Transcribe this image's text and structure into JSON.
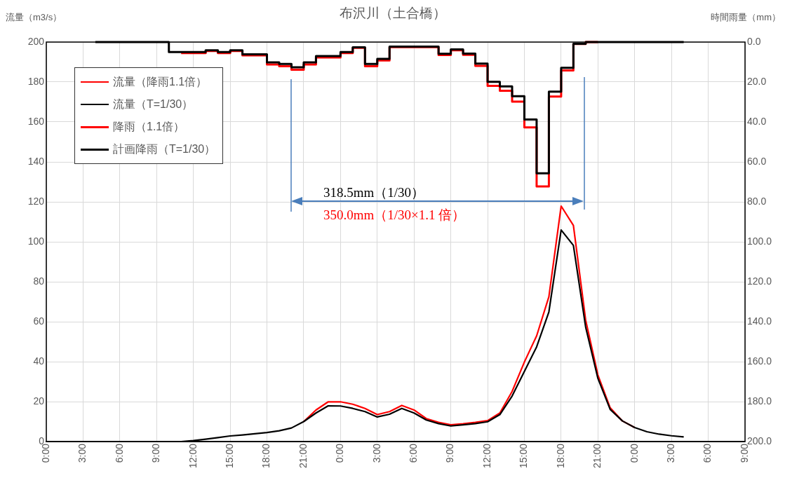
{
  "chart_data": {
    "type": "line",
    "title": "布沢川（土合橋）",
    "ylabel": "流量（m3/s）",
    "y2label": "時間雨量（mm）",
    "categories": [
      "0:00",
      null,
      null,
      "3:00",
      null,
      null,
      "6:00",
      null,
      null,
      "9:00",
      null,
      null,
      "12:00",
      null,
      null,
      "15:00",
      null,
      null,
      "18:00",
      null,
      null,
      "21:00",
      null,
      null,
      "0:00",
      null,
      null,
      "3:00",
      null,
      null,
      "6:00",
      null,
      null,
      "9:00",
      null,
      null,
      "12:00",
      null,
      null,
      "15:00",
      null,
      null,
      "18:00",
      null,
      null,
      "21:00",
      null,
      null,
      "0:00",
      null,
      null,
      "3:00",
      null,
      null,
      "6:00",
      null,
      null,
      "9:00"
    ],
    "ylim": [
      0,
      200
    ],
    "yticks": [
      0,
      20,
      40,
      60,
      80,
      100,
      120,
      140,
      160,
      180,
      200
    ],
    "y2lim": [
      200,
      0
    ],
    "y2ticks": [
      {
        "value": 0,
        "label": "0.0"
      },
      {
        "value": 20,
        "label": "20.0"
      },
      {
        "value": 40,
        "label": "40.0"
      },
      {
        "value": 60,
        "label": "60.0"
      },
      {
        "value": 80,
        "label": "80.0"
      },
      {
        "value": 100,
        "label": "100.0"
      },
      {
        "value": 120,
        "label": "120.0"
      },
      {
        "value": 140,
        "label": "140.0"
      },
      {
        "value": 160,
        "label": "160.0"
      },
      {
        "value": 180,
        "label": "180.0"
      },
      {
        "value": 200,
        "label": "200.0"
      }
    ],
    "grid": true,
    "legend": "top left",
    "annotations": [
      "318.5mm（1/30）",
      "350.0mm（1/30×1.1 倍）"
    ],
    "series": [
      {
        "name": "流量（降雨1.1倍）",
        "type": "line",
        "color": "#ff0000",
        "values": [
          null,
          null,
          null,
          null,
          null,
          null,
          null,
          null,
          null,
          null,
          null,
          null,
          null,
          null,
          null,
          null,
          null,
          null,
          null,
          null,
          null,
          10,
          15.8,
          19.9,
          19.9,
          18.7,
          16.6,
          13.5,
          15,
          18.1,
          15.8,
          11.5,
          9.6,
          8.4,
          8.9,
          9.6,
          10.5,
          14.3,
          25.1,
          39.8,
          52.9,
          72.5,
          117.9,
          108.2,
          60.8,
          33.3,
          16.9,
          10.3,
          7,
          null,
          null,
          null,
          null,
          null,
          null,
          null,
          null,
          null
        ]
      },
      {
        "name": "流量（T=1/30）",
        "type": "line",
        "color": "#000000",
        "values": [
          null,
          null,
          null,
          null,
          null,
          0,
          0,
          0,
          0,
          0,
          0,
          0,
          0.5,
          1.2,
          2,
          2.8,
          3.3,
          3.9,
          4.5,
          5.4,
          6.8,
          10,
          14.3,
          17.9,
          17.8,
          16.6,
          15,
          12.3,
          13.7,
          16.6,
          14.3,
          10.8,
          9,
          7.8,
          8.4,
          9,
          9.9,
          13.5,
          22.8,
          35.1,
          47.4,
          64.9,
          105.9,
          98.2,
          57.3,
          31.6,
          16.1,
          10.3,
          7,
          4.9,
          3.7,
          2.9,
          2.3,
          null,
          null,
          null,
          null,
          null
        ]
      },
      {
        "name": "降雨（1.1倍）",
        "type": "step",
        "axis": "y2",
        "color": "#ff0000",
        "values": [
          null,
          null,
          null,
          null,
          null,
          null,
          null,
          null,
          null,
          null,
          null,
          5.5,
          5.5,
          5.5,
          4.5,
          5.5,
          4.5,
          6.7,
          6.7,
          11.2,
          12.1,
          13.9,
          11.2,
          7.7,
          7.7,
          5.5,
          2.9,
          12.1,
          9.2,
          2.5,
          2.5,
          2.5,
          2.5,
          6.5,
          4.1,
          6.4,
          11.9,
          21.9,
          24.4,
          29.8,
          42.7,
          72.3,
          27.3,
          14.2,
          1,
          0,
          null,
          null,
          null,
          null,
          null,
          null,
          null,
          null,
          null,
          null,
          null,
          null
        ]
      },
      {
        "name": "計画降雨（T=1/30）",
        "type": "step",
        "axis": "y2",
        "color": "#000000",
        "values": [
          null,
          null,
          null,
          null,
          0,
          0,
          0,
          0,
          0,
          0,
          0,
          5,
          5,
          5,
          4.1,
          5,
          4.1,
          6.1,
          6.1,
          10.2,
          11,
          12.6,
          10.2,
          7,
          7,
          5,
          2.6,
          11,
          8.4,
          2.3,
          2.3,
          2.3,
          2.3,
          5.9,
          3.7,
          5.8,
          10.8,
          19.9,
          22.2,
          27.1,
          38.8,
          65.7,
          24.8,
          12.9,
          0.9,
          0,
          0,
          0,
          0,
          0,
          0,
          0,
          0,
          null,
          null,
          null,
          null,
          null
        ]
      }
    ]
  }
}
